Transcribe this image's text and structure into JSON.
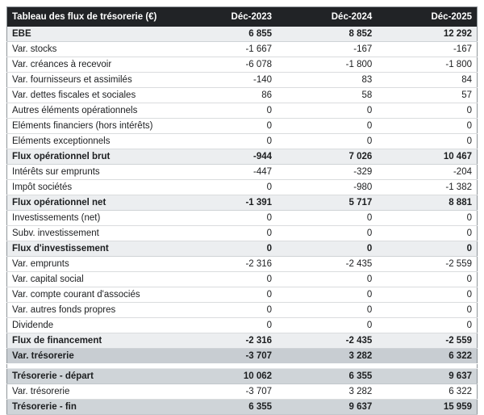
{
  "colors": {
    "header_bg": "#212326",
    "header_fg": "#ffffff",
    "section_row_bg": "#eceef0",
    "band_dark_bg": "#c8cdd2",
    "band_light_bg": "#cfd4d8",
    "text": "#1c1e20"
  },
  "table": {
    "title": "Tableau des flux de trésorerie (€)",
    "columns": [
      "Déc-2023",
      "Déc-2024",
      "Déc-2025"
    ],
    "rows": [
      {
        "label": "EBE",
        "values": [
          "6 855",
          "8 852",
          "12 292"
        ]
      },
      {
        "label": "Var. stocks",
        "values": [
          "-1 667",
          "-167",
          "-167"
        ]
      },
      {
        "label": "Var. créances à recevoir",
        "values": [
          "-6 078",
          "-1 800",
          "-1 800"
        ]
      },
      {
        "label": "Var. fournisseurs et assimilés",
        "values": [
          "-140",
          "83",
          "84"
        ]
      },
      {
        "label": "Var. dettes fiscales et sociales",
        "values": [
          "86",
          "58",
          "57"
        ]
      },
      {
        "label": "Autres éléments opérationnels",
        "values": [
          "0",
          "0",
          "0"
        ]
      },
      {
        "label": "Eléments financiers (hors intérêts)",
        "values": [
          "0",
          "0",
          "0"
        ]
      },
      {
        "label": "Eléments exceptionnels",
        "values": [
          "0",
          "0",
          "0"
        ]
      },
      {
        "label": "Flux opérationnel brut",
        "values": [
          "-944",
          "7 026",
          "10 467"
        ]
      },
      {
        "label": "Intérêts sur emprunts",
        "values": [
          "-447",
          "-329",
          "-204"
        ]
      },
      {
        "label": "Impôt sociétés",
        "values": [
          "0",
          "-980",
          "-1 382"
        ]
      },
      {
        "label": "Flux opérationnel net",
        "values": [
          "-1 391",
          "5 717",
          "8 881"
        ]
      },
      {
        "label": "Investissements (net)",
        "values": [
          "0",
          "0",
          "0"
        ]
      },
      {
        "label": "Subv. investissement",
        "values": [
          "0",
          "0",
          "0"
        ]
      },
      {
        "label": "Flux d'investissement",
        "values": [
          "0",
          "0",
          "0"
        ]
      },
      {
        "label": "Var. emprunts",
        "values": [
          "-2 316",
          "-2 435",
          "-2 559"
        ]
      },
      {
        "label": "Var. capital social",
        "values": [
          "0",
          "0",
          "0"
        ]
      },
      {
        "label": "Var. compte courant d'associés",
        "values": [
          "0",
          "0",
          "0"
        ]
      },
      {
        "label": "Var. autres fonds propres",
        "values": [
          "0",
          "0",
          "0"
        ]
      },
      {
        "label": "Dividende",
        "values": [
          "0",
          "0",
          "0"
        ]
      },
      {
        "label": "Flux de financement",
        "values": [
          "-2 316",
          "-2 435",
          "-2 559"
        ]
      },
      {
        "label": "Var. trésorerie",
        "values": [
          "-3 707",
          "3 282",
          "6 322"
        ]
      },
      {
        "label": "Trésorerie - départ",
        "values": [
          "10 062",
          "6 355",
          "9 637"
        ]
      },
      {
        "label": "Var. trésorerie",
        "values": [
          "-3 707",
          "3 282",
          "6 322"
        ]
      },
      {
        "label": "Trésorerie - fin",
        "values": [
          "6 355",
          "9 637",
          "15 959"
        ]
      }
    ]
  }
}
